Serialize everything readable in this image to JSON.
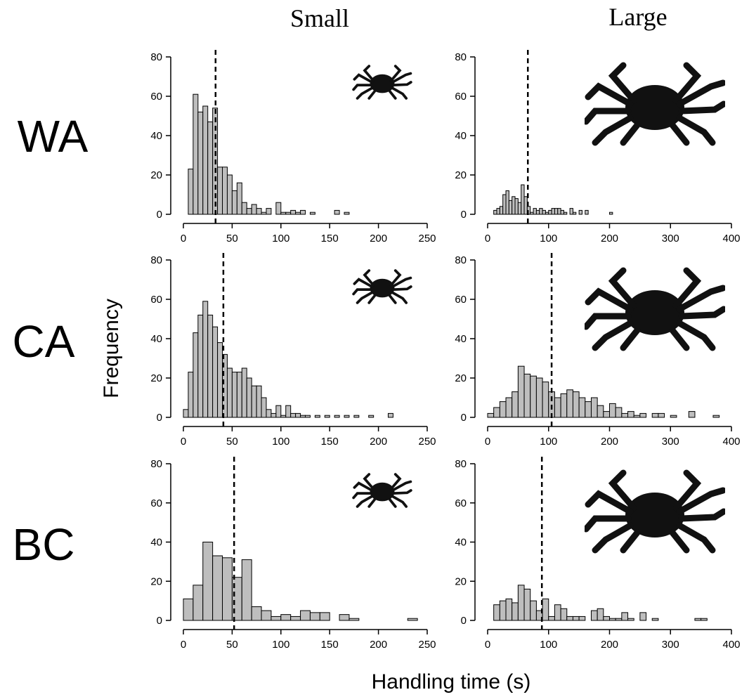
{
  "figure": {
    "column_titles": [
      "Small",
      "Large"
    ],
    "row_labels": [
      "WA",
      "CA",
      "BC"
    ],
    "xlabel": "Handling time (s)",
    "ylabel": "Frequency"
  },
  "chart_data": [
    {
      "type": "histogram",
      "color": "#bebebe",
      "xlim": [
        0,
        250
      ],
      "xticks": [
        0,
        50,
        100,
        150,
        200,
        250
      ],
      "ylim": [
        0,
        80
      ],
      "yticks": [
        0,
        20,
        40,
        60,
        80
      ],
      "mean_line": 33,
      "bins": [
        5,
        10,
        15,
        20,
        25,
        30,
        35,
        40,
        45,
        50,
        55,
        60,
        65,
        70,
        75,
        80,
        85,
        90,
        95,
        100,
        105,
        110,
        115,
        120,
        125,
        130,
        135,
        140,
        145,
        150,
        155,
        160,
        165,
        170
      ],
      "values": [
        23,
        61,
        52,
        55,
        47,
        54,
        24,
        24,
        20,
        12,
        16,
        6,
        3,
        5,
        3,
        1,
        3,
        0,
        6,
        1,
        1,
        2,
        1,
        2,
        0,
        1,
        0,
        0,
        0,
        0,
        2,
        0,
        1
      ]
    },
    {
      "type": "histogram",
      "color": "#bebebe",
      "xlim": [
        0,
        400
      ],
      "xticks": [
        0,
        100,
        200,
        300,
        400
      ],
      "ylim": [
        0,
        80
      ],
      "yticks": [
        0,
        20,
        40,
        60,
        80
      ],
      "mean_line": 66,
      "bins": [
        10,
        15,
        20,
        25,
        30,
        35,
        40,
        45,
        50,
        55,
        60,
        65,
        70,
        75,
        80,
        85,
        90,
        95,
        100,
        105,
        110,
        115,
        120,
        125,
        130,
        135,
        140,
        145,
        150,
        155,
        160,
        165,
        170,
        175,
        180,
        185,
        190,
        195,
        200,
        205
      ],
      "values": [
        2,
        3,
        4,
        10,
        12,
        7,
        9,
        8,
        6,
        15,
        9,
        4,
        1,
        3,
        2,
        3,
        2,
        1,
        2,
        3,
        3,
        3,
        2,
        1,
        0,
        3,
        1,
        0,
        2,
        0,
        2,
        0,
        0,
        0,
        0,
        0,
        0,
        0,
        1
      ]
    },
    {
      "type": "histogram",
      "color": "#bebebe",
      "xlim": [
        0,
        250
      ],
      "xticks": [
        0,
        50,
        100,
        150,
        200,
        250
      ],
      "ylim": [
        0,
        80
      ],
      "yticks": [
        0,
        20,
        40,
        60,
        80
      ],
      "mean_line": 41,
      "bins": [
        0,
        5,
        10,
        15,
        20,
        25,
        30,
        35,
        40,
        45,
        50,
        55,
        60,
        65,
        70,
        75,
        80,
        85,
        90,
        95,
        100,
        105,
        110,
        115,
        120,
        125,
        130,
        135,
        140,
        145,
        150,
        155,
        160,
        165,
        170,
        175,
        180,
        185,
        190,
        195,
        200,
        205,
        210,
        215
      ],
      "values": [
        4,
        23,
        43,
        52,
        59,
        52,
        46,
        38,
        32,
        25,
        23,
        23,
        25,
        20,
        16,
        16,
        10,
        4,
        2,
        6,
        1,
        6,
        2,
        2,
        1,
        1,
        0,
        1,
        0,
        1,
        0,
        1,
        0,
        1,
        0,
        1,
        0,
        0,
        1,
        0,
        0,
        0,
        2
      ]
    },
    {
      "type": "histogram",
      "color": "#bebebe",
      "xlim": [
        0,
        400
      ],
      "xticks": [
        0,
        100,
        200,
        300,
        400
      ],
      "ylim": [
        0,
        80
      ],
      "yticks": [
        0,
        20,
        40,
        60,
        80
      ],
      "mean_line": 105,
      "bins": [
        0,
        10,
        20,
        30,
        40,
        50,
        60,
        70,
        80,
        90,
        100,
        110,
        120,
        130,
        140,
        150,
        160,
        170,
        180,
        190,
        200,
        210,
        220,
        230,
        240,
        250,
        260,
        270,
        280,
        290,
        300,
        310,
        320,
        330,
        340,
        350,
        360,
        370,
        380
      ],
      "values": [
        2,
        5,
        8,
        10,
        13,
        26,
        22,
        21,
        20,
        18,
        13,
        10,
        12,
        14,
        13,
        10,
        8,
        10,
        6,
        3,
        7,
        5,
        2,
        3,
        1,
        2,
        0,
        2,
        2,
        0,
        1,
        0,
        0,
        3,
        0,
        0,
        0,
        1
      ]
    },
    {
      "type": "histogram",
      "color": "#bebebe",
      "xlim": [
        0,
        250
      ],
      "xticks": [
        0,
        50,
        100,
        150,
        200,
        250
      ],
      "ylim": [
        0,
        80
      ],
      "yticks": [
        0,
        20,
        40,
        60,
        80
      ],
      "mean_line": 52,
      "bins": [
        0,
        10,
        20,
        30,
        40,
        50,
        60,
        70,
        80,
        90,
        100,
        110,
        120,
        130,
        140,
        150,
        160,
        170,
        180,
        190,
        200,
        210,
        220,
        230,
        240
      ],
      "values": [
        11,
        18,
        40,
        33,
        32,
        22,
        31,
        7,
        5,
        2,
        3,
        2,
        5,
        4,
        4,
        0,
        3,
        1,
        0,
        0,
        0,
        0,
        0,
        1
      ]
    },
    {
      "type": "histogram",
      "color": "#bebebe",
      "xlim": [
        0,
        400
      ],
      "xticks": [
        0,
        100,
        200,
        300,
        400
      ],
      "ylim": [
        0,
        80
      ],
      "yticks": [
        0,
        20,
        40,
        60,
        80
      ],
      "mean_line": 89,
      "bins": [
        10,
        20,
        30,
        40,
        50,
        60,
        70,
        80,
        90,
        100,
        110,
        120,
        130,
        140,
        150,
        160,
        170,
        180,
        190,
        200,
        210,
        220,
        230,
        240,
        250,
        260,
        270,
        280,
        290,
        300,
        310,
        320,
        330,
        340,
        350,
        360
      ],
      "values": [
        8,
        10,
        11,
        9,
        18,
        16,
        10,
        5,
        11,
        2,
        8,
        6,
        2,
        2,
        2,
        0,
        5,
        6,
        2,
        1,
        1,
        4,
        1,
        0,
        4,
        0,
        1,
        0,
        0,
        0,
        0,
        0,
        0,
        1,
        1
      ]
    }
  ]
}
